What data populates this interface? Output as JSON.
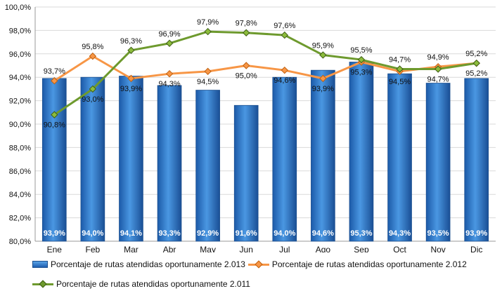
{
  "chart_data": {
    "type": "bar",
    "categories": [
      "Ene",
      "Feb",
      "Mar",
      "Abr",
      "May",
      "Jun",
      "Jul",
      "Ago",
      "Sep",
      "Oct",
      "Nov",
      "Dic"
    ],
    "ylim": [
      80,
      100
    ],
    "yticks": [
      "80,0%",
      "82,0%",
      "84,0%",
      "86,0%",
      "88,0%",
      "90,0%",
      "92,0%",
      "94,0%",
      "96,0%",
      "98,0%",
      "100,0%"
    ],
    "grid": true,
    "legend_position": "bottom",
    "series": [
      {
        "name": "Porcentaje de rutas atendidas oportunamente 2.013",
        "type": "bar",
        "color": "#2f7fd4",
        "values": [
          93.9,
          94.0,
          94.1,
          93.3,
          92.9,
          91.6,
          94.0,
          94.6,
          95.3,
          94.3,
          93.5,
          93.9
        ],
        "labels": [
          "93,9%",
          "94,0%",
          "94,1%",
          "93,3%",
          "92,9%",
          "91,6%",
          "94,0%",
          "94,6%",
          "95,3%",
          "94,3%",
          "93,5%",
          "93,9%"
        ]
      },
      {
        "name": "Porcentaje de rutas atendidas oportunamente 2.012",
        "type": "line",
        "color": "#f79646",
        "values": [
          93.7,
          95.8,
          93.9,
          94.3,
          94.5,
          95.0,
          94.6,
          93.9,
          95.3,
          94.5,
          94.9,
          95.2
        ],
        "labels": [
          "93,7%",
          "95,8%",
          "93,9%",
          "94,3%",
          "94,5%",
          "95,0%",
          "94,6%",
          "93,9%",
          "95,3%",
          "94,5%",
          "94,9%",
          "95,2%"
        ]
      },
      {
        "name": "Porcentaje de rutas atendidas oportunamente 2.011",
        "type": "line",
        "color": "#6e9a2e",
        "values": [
          90.8,
          93.0,
          96.3,
          96.9,
          97.9,
          97.8,
          97.6,
          95.9,
          95.5,
          94.7,
          94.7,
          95.2
        ],
        "labels": [
          "90,8%",
          "93,0%",
          "96,3%",
          "96,9%",
          "97,9%",
          "97,8%",
          "97,6%",
          "95,9%",
          "95,5%",
          "94,7%",
          "94,7%",
          "95,2%"
        ]
      }
    ]
  }
}
